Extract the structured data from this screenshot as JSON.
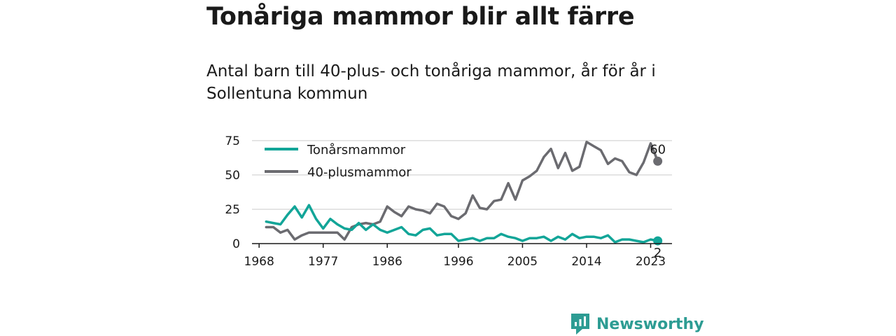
{
  "title": "Tonåriga mammor blir allt färre",
  "subtitle": "Antal barn till 40-plus- och tonåriga mammor, år för år i Sollentuna kommun",
  "brand": {
    "name": "Newsworthy",
    "color": "#2d9c93"
  },
  "chart_data": {
    "type": "line",
    "x": [
      1969,
      1970,
      1971,
      1972,
      1973,
      1974,
      1975,
      1976,
      1977,
      1978,
      1979,
      1980,
      1981,
      1982,
      1983,
      1984,
      1985,
      1986,
      1987,
      1988,
      1989,
      1990,
      1991,
      1992,
      1993,
      1994,
      1995,
      1996,
      1997,
      1998,
      1999,
      2000,
      2001,
      2002,
      2003,
      2004,
      2005,
      2006,
      2007,
      2008,
      2009,
      2010,
      2011,
      2012,
      2013,
      2014,
      2015,
      2016,
      2017,
      2018,
      2019,
      2020,
      2021,
      2022,
      2023,
      2024
    ],
    "series": [
      {
        "name": "Tonårsmammor",
        "color": "#12a598",
        "values": [
          16,
          15,
          14,
          21,
          27,
          19,
          28,
          18,
          11,
          18,
          14,
          11,
          10,
          15,
          10,
          14,
          10,
          8,
          10,
          12,
          7,
          6,
          10,
          11,
          6,
          7,
          7,
          2,
          3,
          4,
          2,
          4,
          4,
          7,
          5,
          4,
          2,
          4,
          4,
          5,
          2,
          5,
          3,
          7,
          4,
          5,
          5,
          4,
          6,
          1,
          3,
          3,
          2,
          1,
          3,
          2
        ],
        "end_label": "2"
      },
      {
        "name": "40-plusmammor",
        "color": "#6b6b70",
        "values": [
          12,
          12,
          8,
          10,
          3,
          6,
          8,
          8,
          8,
          8,
          8,
          3,
          12,
          14,
          15,
          14,
          16,
          27,
          23,
          20,
          27,
          25,
          24,
          22,
          29,
          27,
          20,
          18,
          22,
          35,
          26,
          25,
          31,
          32,
          44,
          32,
          46,
          49,
          53,
          63,
          69,
          55,
          66,
          53,
          56,
          74,
          71,
          68,
          58,
          62,
          60,
          52,
          50,
          59,
          73,
          60
        ],
        "end_label": "60"
      }
    ],
    "xticks": [
      1968,
      1977,
      1986,
      1996,
      2005,
      2014,
      2023
    ],
    "yticks": [
      0,
      25,
      50,
      75
    ],
    "xlim": [
      1967,
      2026
    ],
    "ylim": [
      0,
      78
    ],
    "grid": true,
    "legend": "top-left",
    "xlabel": "",
    "ylabel": ""
  }
}
